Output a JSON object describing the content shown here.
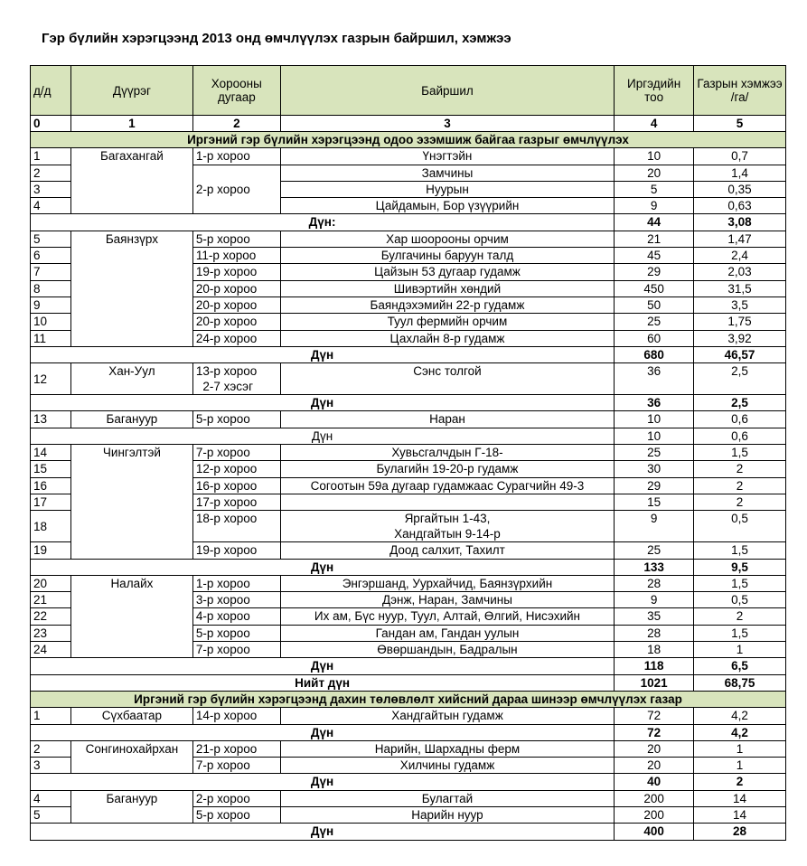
{
  "title": "Гэр бүлийн хэрэгцээнд 2013 онд өмчлүүлэх газрын байршил, хэмжээ",
  "colors": {
    "header_bg": "#d8e4bc",
    "border": "#000000"
  },
  "headers": [
    "д/д",
    "Дүүрэг",
    "Хорооны дугаар",
    "Байршил",
    "Иргэдийн тоо",
    "Газрын хэмжээ /га/"
  ],
  "column_numbers": [
    "0",
    "1",
    "2",
    "3",
    "4",
    "5"
  ],
  "rows": [
    {
      "type": "section",
      "text": "Иргэний гэр бүлийн хэрэгцээнд одоо эзэмшиж байгаа газрыг өмчлүүлэх"
    },
    {
      "type": "data",
      "n": "1",
      "district": "Багахангай",
      "dspan": 4,
      "khoroo": "1-р хороо",
      "kspan": 1,
      "loc": "Үнэгтэйн",
      "count": "10",
      "area": "0,7"
    },
    {
      "type": "data",
      "n": "2",
      "khoroo": "2-р хороо",
      "kspan": 3,
      "loc": "Замчины",
      "count": "20",
      "area": "1,4"
    },
    {
      "type": "data",
      "n": "3",
      "loc": "Нуурын",
      "count": "5",
      "area": "0,35"
    },
    {
      "type": "data",
      "n": "4",
      "loc": "Цайдамын, Бор үзүүрийн",
      "count": "9",
      "area": "0,63"
    },
    {
      "type": "sum",
      "bold": true,
      "label": "Дүн:",
      "count": "44",
      "area": "3,08"
    },
    {
      "type": "data",
      "n": "5",
      "district": "Баянзүрх",
      "dspan": 7,
      "khoroo": "5-р хороо",
      "kspan": 1,
      "loc": "Хар шоорооны орчим",
      "count": "21",
      "area": "1,47"
    },
    {
      "type": "data",
      "n": "6",
      "khoroo": "11-р хороо",
      "kspan": 1,
      "loc": "Булгачины баруун талд",
      "count": "45",
      "area": "2,4"
    },
    {
      "type": "data",
      "n": "7",
      "khoroo": "19-р хороо",
      "kspan": 1,
      "loc": "Цайзын 53 дугаар гудамж",
      "count": "29",
      "area": "2,03"
    },
    {
      "type": "data",
      "n": "8",
      "khoroo": "20-р хороо",
      "kspan": 1,
      "loc": "Шивэртийн хөндий",
      "count": "450",
      "area": "31,5"
    },
    {
      "type": "data",
      "n": "9",
      "khoroo": "20-р хороо",
      "kspan": 1,
      "loc": "Баяндэхэмийн 22-р гудамж",
      "count": "50",
      "area": "3,5"
    },
    {
      "type": "data",
      "n": "10",
      "khoroo": "20-р хороо",
      "kspan": 1,
      "loc": "Туул фермийн орчим",
      "count": "25",
      "area": "1,75"
    },
    {
      "type": "data",
      "n": "11",
      "khoroo": "24-р хороо",
      "kspan": 1,
      "loc": "Цахлайн 8-р гудамж",
      "count": "60",
      "area": "3,92"
    },
    {
      "type": "sum",
      "bold": true,
      "label": "Дүн",
      "count": "680",
      "area": "46,57"
    },
    {
      "type": "data",
      "tall": true,
      "n": "12",
      "district": "Хан-Уул",
      "dspan": 1,
      "khoroo": "13-р хороо\n2-7  хэсэг",
      "kspan": 1,
      "loc": "Сэнс толгой",
      "count": "36",
      "area": "2,5"
    },
    {
      "type": "sum",
      "bold": true,
      "label": "Дүн",
      "count": "36",
      "area": "2,5"
    },
    {
      "type": "data",
      "n": "13",
      "district": "Багануур",
      "dspan": 1,
      "khoroo": "5-р хороо",
      "kspan": 1,
      "loc": "Наран",
      "count": "10",
      "area": "0,6"
    },
    {
      "type": "sum",
      "bold": false,
      "label": "Дүн",
      "count": "10",
      "area": "0,6"
    },
    {
      "type": "data",
      "n": "14",
      "district": "Чингэлтэй",
      "dspan": 6,
      "khoroo": "7-р хороо",
      "kspan": 1,
      "loc": "Хувьсгалчдын Г-18-",
      "count": "25",
      "area": "1,5"
    },
    {
      "type": "data",
      "n": "15",
      "khoroo": "12-р хороо",
      "kspan": 1,
      "loc": "Булагийн 19-20-р гудамж",
      "count": "30",
      "area": "2"
    },
    {
      "type": "data",
      "n": "16",
      "khoroo": "16-р хороо",
      "kspan": 1,
      "loc": "Согоотын 59а дугаар гудамжаас Сурагчийн 49-3",
      "count": "29",
      "area": "2"
    },
    {
      "type": "data",
      "n": "17",
      "khoroo": "17-р хороо",
      "kspan": 1,
      "loc": "",
      "count": "15",
      "area": "2"
    },
    {
      "type": "data",
      "tall": true,
      "n": "18",
      "khoroo": "18-р хороо",
      "kspan": 1,
      "loc": "Яргайтын 1-43,\nХандгайтын 9-14-р",
      "count": "9",
      "area": "0,5"
    },
    {
      "type": "data",
      "n": "19",
      "khoroo": "19-р хороо",
      "kspan": 1,
      "loc": "Доод салхит, Тахилт",
      "count": "25",
      "area": "1,5"
    },
    {
      "type": "sum",
      "bold": true,
      "label": "Дүн",
      "count": "133",
      "area": "9,5"
    },
    {
      "type": "data",
      "n": "20",
      "district": "Налайх",
      "dspan": 5,
      "khoroo": "1-р хороо",
      "kspan": 1,
      "loc": "Энгэршанд, Уурхайчид, Баянзүрхийн",
      "count": "28",
      "area": "1,5"
    },
    {
      "type": "data",
      "n": "21",
      "khoroo": "3-р хороо",
      "kspan": 1,
      "loc": "Дэнж, Наран, Замчины",
      "count": "9",
      "area": "0,5"
    },
    {
      "type": "data",
      "n": "22",
      "khoroo": "4-р хороо",
      "kspan": 1,
      "loc": "Их ам, Бүс нуур, Туул, Алтай, Өлгий, Нисэхийн",
      "count": "35",
      "area": "2"
    },
    {
      "type": "data",
      "n": "23",
      "khoroo": "5-р хороо",
      "kspan": 1,
      "loc": "Гандан ам, Гандан уулын",
      "count": "28",
      "area": "1,5"
    },
    {
      "type": "data",
      "n": "24",
      "khoroo": "7-р хороо",
      "kspan": 1,
      "loc": "Өвөршандын, Бадралын",
      "count": "18",
      "area": "1"
    },
    {
      "type": "sum",
      "bold": true,
      "label": "Дүн",
      "count": "118",
      "area": "6,5"
    },
    {
      "type": "sum",
      "bold": true,
      "label": "Нийт дүн",
      "count": "1021",
      "area": "68,75"
    },
    {
      "type": "section",
      "text": "Иргэний гэр бүлийн хэрэгцээнд дахин төлөвлөлт хийсний дараа шинээр өмчлүүлэх газар"
    },
    {
      "type": "data",
      "n": "1",
      "district": "Сүхбаатар",
      "dspan": 1,
      "khoroo": "14-р хороо",
      "kspan": 1,
      "loc": "Хандгайтын гудамж",
      "count": "72",
      "area": "4,2"
    },
    {
      "type": "sum",
      "bold": true,
      "label": "Дүн",
      "count": "72",
      "area": "4,2"
    },
    {
      "type": "data",
      "n": "2",
      "district": "Сонгинохайрхан",
      "dspan": 2,
      "khoroo": "21-р хороо",
      "kspan": 1,
      "loc": "Нарийн, Шархадны ферм",
      "count": "20",
      "area": "1"
    },
    {
      "type": "data",
      "n": "3",
      "khoroo": "7-р хороо",
      "kspan": 1,
      "loc": "Хилчины гудамж",
      "count": "20",
      "area": "1"
    },
    {
      "type": "sum",
      "bold": true,
      "label": "Дүн",
      "count": "40",
      "area": "2"
    },
    {
      "type": "data",
      "n": "4",
      "district": "Багануур",
      "dspan": 2,
      "khoroo": "2-р хороо",
      "kspan": 1,
      "loc": "Булагтай",
      "count": "200",
      "area": "14"
    },
    {
      "type": "data",
      "n": "5",
      "khoroo": "5-р хороо",
      "kspan": 1,
      "loc": "Нарийн нуур",
      "count": "200",
      "area": "14"
    },
    {
      "type": "sum",
      "bold": true,
      "label": "Дүн",
      "count": "400",
      "area": "28"
    }
  ]
}
